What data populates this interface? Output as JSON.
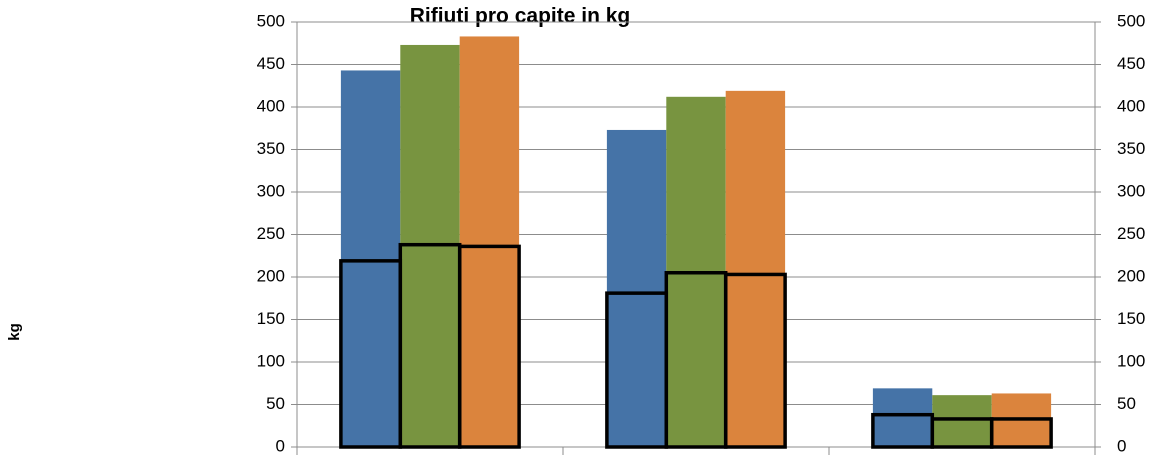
{
  "chart_data": {
    "type": "bar",
    "title": "Rifiuti pro capite in kg",
    "y_label": "kg",
    "categories": [
      null,
      null,
      null
    ],
    "series": [
      {
        "color": "#4573a7",
        "values": [
          443,
          373,
          69
        ]
      },
      {
        "color": "#789440",
        "values": [
          473,
          412,
          61
        ]
      },
      {
        "color": "#db843d",
        "values": [
          483,
          419,
          63
        ]
      },
      {
        "color": "#000000",
        "outline": true,
        "axis": "y2",
        "values": [
          219,
          181,
          38
        ]
      },
      {
        "color": "#000000",
        "outline": true,
        "axis": "y2",
        "values": [
          238,
          205,
          33
        ]
      },
      {
        "color": "#000000",
        "outline": true,
        "axis": "y2",
        "values": [
          236,
          203,
          33
        ]
      }
    ],
    "ylim": [
      0,
      500
    ],
    "yticks": [
      0,
      50,
      100,
      150,
      200,
      250,
      300,
      350,
      400,
      450,
      500
    ],
    "y2lim": [
      0,
      500
    ],
    "y2ticks": [
      0,
      50,
      100,
      150,
      200,
      250,
      300,
      350,
      400,
      450,
      500
    ],
    "grid": true
  }
}
